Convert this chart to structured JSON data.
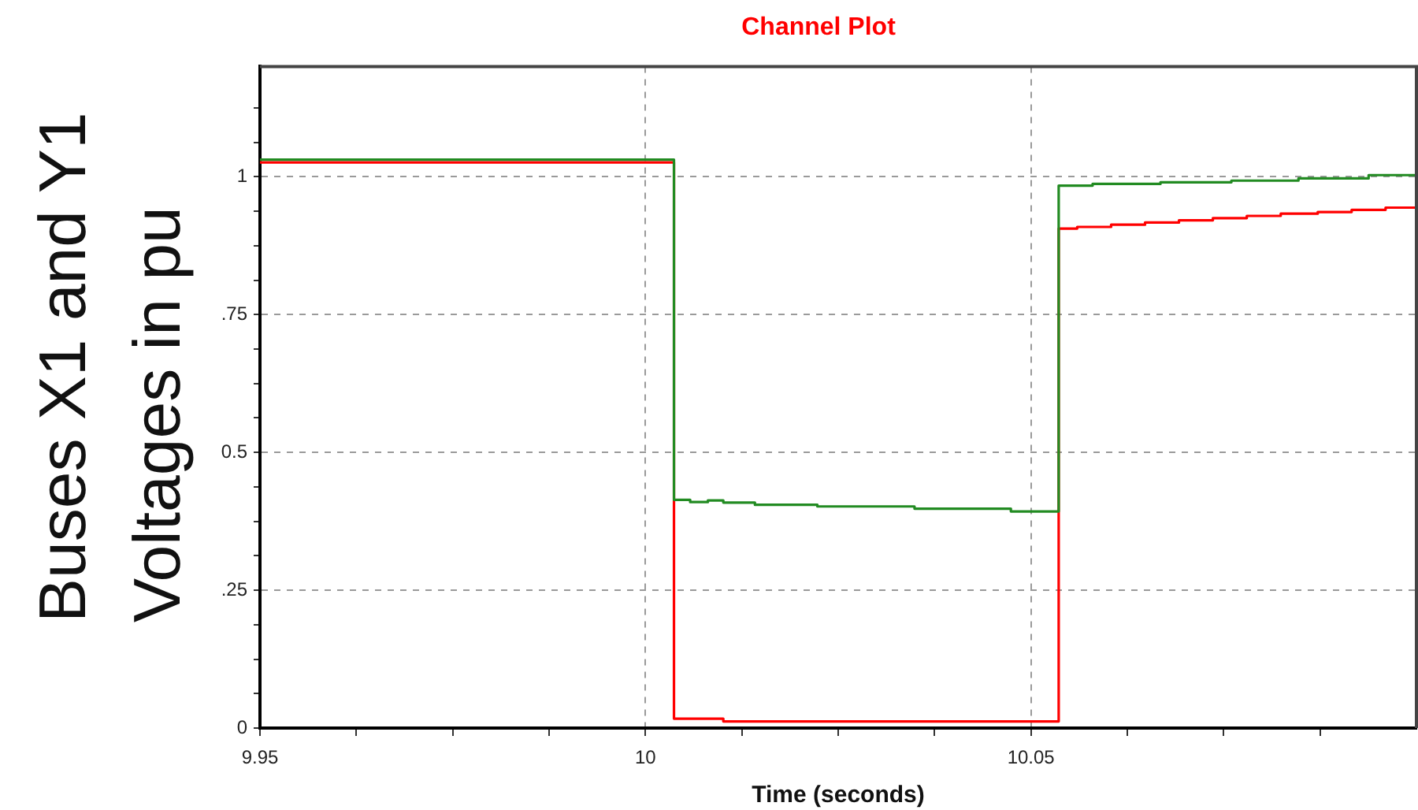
{
  "chart_data": {
    "type": "step",
    "title": "Channel Plot",
    "xlabel": "Time (seconds)",
    "ylabel": "Buses X1 and Y1 Voltages in pu",
    "series": [
      {
        "color": "#228b22",
        "x": [
          9.95,
          10.0037,
          10.0058,
          10.0081,
          10.0101,
          10.0142,
          10.0223,
          10.0349,
          10.0474,
          10.0536,
          10.058,
          10.0668,
          10.076,
          10.0847,
          10.0938,
          10.1
        ],
        "values": [
          1.031,
          0.414,
          0.41,
          0.413,
          0.409,
          0.405,
          0.402,
          0.398,
          0.393,
          0.984,
          0.987,
          0.99,
          0.993,
          0.997,
          1.003,
          1.003
        ]
      },
      {
        "color": "#ff0000",
        "x": [
          9.95,
          10.0037,
          10.0101,
          10.0536,
          10.056,
          10.0604,
          10.0648,
          10.0692,
          10.0736,
          10.078,
          10.0824,
          10.0872,
          10.0916,
          10.096,
          10.1
        ],
        "values": [
          1.026,
          0.017,
          0.012,
          0.906,
          0.909,
          0.913,
          0.917,
          0.921,
          0.925,
          0.929,
          0.933,
          0.936,
          0.94,
          0.944,
          0.946
        ]
      }
    ],
    "xlim": [
      9.95,
      10.1
    ],
    "xticks": [
      9.95,
      {
        "value": 9.9625,
        "label": null
      },
      {
        "value": 9.975,
        "label": null
      },
      {
        "value": 9.9875,
        "label": null
      },
      10,
      {
        "value": 10.0125,
        "label": null
      },
      {
        "value": 10.025,
        "label": null
      },
      {
        "value": 10.0375,
        "label": null
      },
      10.05,
      {
        "value": 10.0625,
        "label": null
      },
      {
        "value": 10.075,
        "label": null
      },
      {
        "value": 10.0875,
        "label": null
      }
    ],
    "ylim": [
      0,
      1.2
    ],
    "yticks": [
      0,
      {
        "value": 0.0625,
        "label": null
      },
      {
        "value": 0.125,
        "label": null
      },
      {
        "value": 0.1875,
        "label": null
      },
      {
        "value": 0.25,
        "label": ".25"
      },
      {
        "value": 0.3125,
        "label": null
      },
      {
        "value": 0.375,
        "label": null
      },
      {
        "value": 0.4375,
        "label": null
      },
      0.5,
      {
        "value": 0.5625,
        "label": null
      },
      {
        "value": 0.625,
        "label": null
      },
      {
        "value": 0.6875,
        "label": null
      },
      {
        "value": 0.75,
        "label": ".75"
      },
      {
        "value": 0.8125,
        "label": null
      },
      {
        "value": 0.875,
        "label": null
      },
      {
        "value": 0.9375,
        "label": null
      },
      1,
      {
        "value": 1.0625,
        "label": null
      },
      {
        "value": 1.125,
        "label": null
      }
    ],
    "grid": true,
    "line_style": "solid"
  }
}
